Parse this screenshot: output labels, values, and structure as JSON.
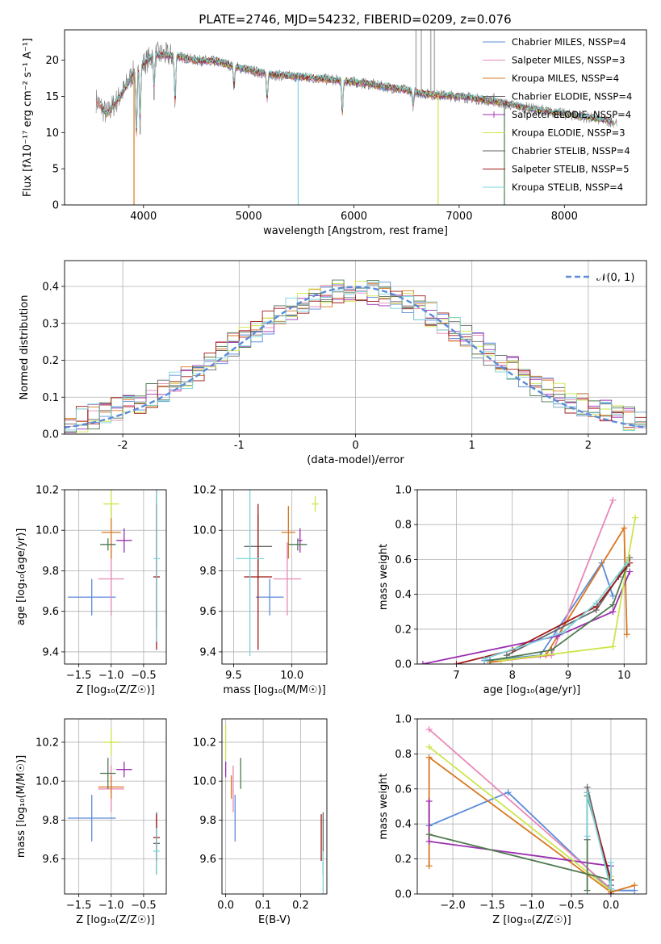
{
  "colors": {
    "chabrier_miles": "#5b8bd9",
    "salpeter_miles": "#e887b6",
    "kroupa_miles": "#d9771f",
    "chabrier_elodie": "#666666",
    "salpeter_elodie": "#9b2fb0",
    "kroupa_elodie": "#cbe64a",
    "chabrier_stelib": "#4f7a4f",
    "salpeter_stelib": "#a01818",
    "kroupa_stelib": "#7dd5dd",
    "normal_curve": "#5b8bd9",
    "grid": "#b0b0b0"
  },
  "chart_data": [
    {
      "id": "spectrum",
      "type": "line",
      "title": "PLATE=2746, MJD=54232, FIBERID=0209, z=0.076",
      "xlabel": "wavelength [Angstrom, rest frame]",
      "ylabel": "Flux [fλ10⁻¹⁷ erg cm⁻² s⁻¹ A⁻¹]",
      "xlim": [
        3250,
        8780
      ],
      "ylim": [
        0,
        24.2
      ],
      "xticks": [
        4000,
        5000,
        6000,
        7000,
        8000
      ],
      "yticks": [
        0,
        5,
        10,
        15,
        20
      ],
      "grid": false,
      "legend_position": "upper-right",
      "legend": [
        {
          "label": "Chabrier MILES, NSSP=4",
          "color_key": "chabrier_miles",
          "marker": false
        },
        {
          "label": "Salpeter MILES, NSSP=3",
          "color_key": "salpeter_miles",
          "marker": false
        },
        {
          "label": "Kroupa MILES, NSSP=4",
          "color_key": "kroupa_miles",
          "marker": false
        },
        {
          "label": "Chabrier ELODIE, NSSP=4",
          "color_key": "chabrier_elodie",
          "marker": true
        },
        {
          "label": "Salpeter ELODIE, NSSP=4",
          "color_key": "salpeter_elodie",
          "marker": true
        },
        {
          "label": "Kroupa ELODIE, NSSP=3",
          "color_key": "kroupa_elodie",
          "marker": false
        },
        {
          "label": "Chabrier STELIB, NSSP=4",
          "color_key": "chabrier_elodie",
          "marker": false
        },
        {
          "label": "Salpeter STELIB, NSSP=5",
          "color_key": "salpeter_stelib",
          "marker": false
        },
        {
          "label": "Kroupa STELIB, NSSP=4",
          "color_key": "kroupa_stelib",
          "marker": false
        }
      ],
      "continuum": {
        "x": [
          3550,
          3650,
          3800,
          3900,
          4000,
          4100,
          4300,
          4500,
          4700,
          4900,
          5100,
          5300,
          5500,
          5800,
          6100,
          6400,
          6700,
          7000,
          7300,
          7600,
          7900,
          8200,
          8500
        ],
        "y": [
          14.5,
          12.5,
          15.5,
          18.2,
          19.5,
          20.8,
          20.6,
          20.0,
          19.8,
          19.0,
          18.3,
          17.9,
          17.7,
          17.3,
          16.8,
          16.1,
          15.3,
          15.0,
          14.4,
          13.5,
          12.8,
          12.1,
          11.4
        ]
      },
      "absorption_lines": [
        {
          "x": 3933,
          "depth": 10
        },
        {
          "x": 3968,
          "depth": 8
        },
        {
          "x": 4101,
          "depth": 5
        },
        {
          "x": 4300,
          "depth": 7
        },
        {
          "x": 4861,
          "depth": 3
        },
        {
          "x": 5175,
          "depth": 4
        },
        {
          "x": 5890,
          "depth": 5
        },
        {
          "x": 6563,
          "depth": 2
        }
      ],
      "model_spikes_down": [
        {
          "x": 3910,
          "to": 0,
          "color_key": "kroupa_miles"
        },
        {
          "x": 5470,
          "to": 0,
          "color_key": "kroupa_stelib"
        },
        {
          "x": 6800,
          "to": 0,
          "color_key": "kroupa_elodie"
        },
        {
          "x": 7430,
          "to": 0,
          "color_key": "chabrier_stelib"
        }
      ],
      "sky_spikes_up": [
        {
          "x": 6590,
          "to": 24.2
        },
        {
          "x": 6640,
          "to": 24.2
        },
        {
          "x": 6730,
          "to": 24.2
        },
        {
          "x": 6765,
          "to": 24.2
        }
      ]
    },
    {
      "id": "residuals",
      "type": "histogram",
      "xlabel": "(data-model)/error",
      "ylabel": "Normed distribution",
      "xlim": [
        -2.5,
        2.5
      ],
      "ylim": [
        0,
        0.47
      ],
      "xticks": [
        -2,
        -1,
        0,
        1,
        2
      ],
      "yticks": [
        0.0,
        0.1,
        0.2,
        0.3,
        0.4
      ],
      "grid": true,
      "legend_position": "upper-right",
      "legend": [
        {
          "label": "𝒩(0, 1)",
          "color_key": "normal_curve",
          "style": "dashed"
        }
      ],
      "bin_width": 0.1,
      "bin_start": -2.5
    },
    {
      "id": "age_vs_Z",
      "type": "errorbar",
      "xlabel": "Z [log₁₀(Z/Z☉)]",
      "ylabel": "age  [log₁₀(age/yr)]",
      "xlim": [
        -1.72,
        -0.15
      ],
      "ylim": [
        9.34,
        10.2
      ],
      "xticks": [
        -1.5,
        -1.0,
        -0.5
      ],
      "yticks": [
        9.4,
        9.6,
        9.8,
        10.0,
        10.2
      ],
      "grid": true,
      "points": [
        {
          "model": "chabrier_miles",
          "x": -1.3,
          "xerr": 0.37,
          "y": 9.67,
          "yerr": 0.09
        },
        {
          "model": "salpeter_miles",
          "x": -1.0,
          "xerr": 0.2,
          "y": 9.76,
          "yerr": 0.18
        },
        {
          "model": "kroupa_miles",
          "x": -1.0,
          "xerr": 0.15,
          "y": 9.99,
          "yerr": 0.13
        },
        {
          "model": "chabrier_elodie",
          "x": -0.3,
          "xerr": 0.0,
          "y": 9.92,
          "yerr": 0.4
        },
        {
          "model": "salpeter_elodie",
          "x": -0.8,
          "xerr": 0.12,
          "y": 9.95,
          "yerr": 0.06
        },
        {
          "model": "kroupa_elodie",
          "x": -1.0,
          "xerr": 0.12,
          "y": 10.13,
          "yerr": 0.07
        },
        {
          "model": "chabrier_stelib",
          "x": -1.05,
          "xerr": 0.12,
          "y": 9.93,
          "yerr": 0.03
        },
        {
          "model": "salpeter_stelib",
          "x": -0.3,
          "xerr": 0.05,
          "y": 9.77,
          "yerr": 0.36
        },
        {
          "model": "kroupa_stelib",
          "x": -0.3,
          "xerr": 0.05,
          "y": 9.86,
          "yerr": 0.41
        }
      ]
    },
    {
      "id": "age_vs_mass",
      "type": "errorbar",
      "xlabel": "mass [log₁₀(M/M☉)]",
      "ylabel": "",
      "xlim": [
        9.4,
        10.3
      ],
      "ylim": [
        9.34,
        10.2
      ],
      "xticks": [
        9.5,
        10.0
      ],
      "yticks": [
        9.4,
        9.6,
        9.8,
        10.0,
        10.2
      ],
      "grid": true,
      "points": [
        {
          "model": "chabrier_miles",
          "x": 9.81,
          "xerr": 0.12,
          "y": 9.67,
          "yerr": 0.09
        },
        {
          "model": "salpeter_miles",
          "x": 9.96,
          "xerr": 0.12,
          "y": 9.76,
          "yerr": 0.18
        },
        {
          "model": "kroupa_miles",
          "x": 9.97,
          "xerr": 0.06,
          "y": 9.99,
          "yerr": 0.13
        },
        {
          "model": "chabrier_elodie",
          "x": 9.71,
          "xerr": 0.12,
          "y": 9.92,
          "yerr": 0.16
        },
        {
          "model": "salpeter_elodie",
          "x": 10.07,
          "xerr": 0.02,
          "y": 9.95,
          "yerr": 0.06
        },
        {
          "model": "kroupa_elodie",
          "x": 10.2,
          "xerr": 0.03,
          "y": 10.13,
          "yerr": 0.04
        },
        {
          "model": "chabrier_stelib",
          "x": 10.05,
          "xerr": 0.08,
          "y": 9.93,
          "yerr": 0.03
        },
        {
          "model": "salpeter_stelib",
          "x": 9.71,
          "xerr": 0.12,
          "y": 9.77,
          "yerr": 0.36
        },
        {
          "model": "kroupa_stelib",
          "x": 9.64,
          "xerr": 0.12,
          "y": 9.86,
          "yerr": 0.48
        }
      ]
    },
    {
      "id": "massweight_vs_age",
      "type": "line",
      "xlabel": "age  [log₁₀(age/yr)]",
      "ylabel": "mass weight",
      "xlim": [
        6.3,
        10.4
      ],
      "ylim": [
        0,
        1.0
      ],
      "xticks": [
        7,
        8,
        9,
        10
      ],
      "yticks": [
        0.0,
        0.2,
        0.4,
        0.6,
        0.8,
        1.0
      ],
      "grid": true,
      "series": [
        {
          "color_key": "chabrier_miles",
          "x": [
            7.5,
            8.5,
            9.6,
            9.8
          ],
          "y": [
            0.02,
            0.05,
            0.58,
            0.39
          ]
        },
        {
          "color_key": "salpeter_miles",
          "x": [
            7.8,
            8.7,
            9.8
          ],
          "y": [
            0.02,
            0.05,
            0.94
          ]
        },
        {
          "color_key": "kroupa_miles",
          "x": [
            7.6,
            8.6,
            10.0,
            10.05
          ],
          "y": [
            0.01,
            0.05,
            0.78,
            0.17
          ]
        },
        {
          "color_key": "chabrier_elodie",
          "x": [
            7.9,
            9.5,
            9.9,
            10.1
          ],
          "y": [
            0.05,
            0.31,
            0.5,
            0.61
          ]
        },
        {
          "color_key": "salpeter_elodie",
          "x": [
            6.4,
            8.8,
            9.8,
            10.1
          ],
          "y": [
            0.0,
            0.16,
            0.3,
            0.53
          ]
        },
        {
          "color_key": "kroupa_elodie",
          "x": [
            7.8,
            9.8,
            10.2
          ],
          "y": [
            0.02,
            0.1,
            0.84
          ]
        },
        {
          "color_key": "chabrier_stelib",
          "x": [
            7.6,
            8.7,
            9.8,
            10.05
          ],
          "y": [
            0.02,
            0.08,
            0.34,
            0.56
          ]
        },
        {
          "color_key": "salpeter_stelib",
          "x": [
            7.0,
            8.0,
            9.5,
            10.1
          ],
          "y": [
            0.0,
            0.08,
            0.33,
            0.58
          ]
        },
        {
          "color_key": "kroupa_stelib",
          "x": [
            7.5,
            8.9,
            9.5,
            10.05
          ],
          "y": [
            0.03,
            0.18,
            0.35,
            0.58
          ]
        }
      ]
    },
    {
      "id": "mass_vs_Z",
      "type": "errorbar",
      "xlabel": "Z [log₁₀(Z/Z☉)]",
      "ylabel": "mass [log₁₀(M/M☉)]",
      "xlim": [
        -1.72,
        -0.15
      ],
      "ylim": [
        9.42,
        10.32
      ],
      "xticks": [
        -1.5,
        -1.0,
        -0.5
      ],
      "yticks": [
        9.6,
        9.8,
        10.0,
        10.2
      ],
      "grid": true,
      "points": [
        {
          "model": "chabrier_miles",
          "x": -1.3,
          "xerr": 0.37,
          "y": 9.81,
          "yerr": 0.12
        },
        {
          "model": "salpeter_miles",
          "x": -1.0,
          "xerr": 0.2,
          "y": 9.96,
          "yerr": 0.12
        },
        {
          "model": "kroupa_miles",
          "x": -1.0,
          "xerr": 0.2,
          "y": 9.97,
          "yerr": 0.06
        },
        {
          "model": "chabrier_elodie",
          "x": -0.3,
          "xerr": 0.05,
          "y": 9.68,
          "yerr": 0.16
        },
        {
          "model": "salpeter_elodie",
          "x": -0.8,
          "xerr": 0.12,
          "y": 10.06,
          "yerr": 0.04
        },
        {
          "model": "kroupa_elodie",
          "x": -1.0,
          "xerr": 0.12,
          "y": 10.2,
          "yerr": 0.07
        },
        {
          "model": "chabrier_stelib",
          "x": -1.05,
          "xerr": 0.12,
          "y": 10.04,
          "yerr": 0.08
        },
        {
          "model": "salpeter_stelib",
          "x": -0.3,
          "xerr": 0.05,
          "y": 9.71,
          "yerr": 0.12
        },
        {
          "model": "kroupa_stelib",
          "x": -0.3,
          "xerr": 0.05,
          "y": 9.64,
          "yerr": 0.12
        }
      ]
    },
    {
      "id": "mass_vs_EBV",
      "type": "errorbar",
      "xlabel": "E(B-V)",
      "ylabel": "",
      "xlim": [
        -0.01,
        0.27
      ],
      "ylim": [
        9.42,
        10.32
      ],
      "xticks": [
        0.0,
        0.1,
        0.2
      ],
      "yticks": [
        9.6,
        9.8,
        10.0,
        10.2
      ],
      "grid": true,
      "points": [
        {
          "model": "chabrier_miles",
          "x": 0.025,
          "xerr": 0.0,
          "y": 9.81,
          "yerr": 0.12
        },
        {
          "model": "salpeter_miles",
          "x": 0.02,
          "xerr": 0.0,
          "y": 9.96,
          "yerr": 0.12
        },
        {
          "model": "kroupa_miles",
          "x": 0.015,
          "xerr": 0.0,
          "y": 9.97,
          "yerr": 0.06
        },
        {
          "model": "chabrier_elodie",
          "x": 0.26,
          "xerr": 0.0,
          "y": 9.68,
          "yerr": 0.16
        },
        {
          "model": "salpeter_elodie",
          "x": 0.0,
          "xerr": 0.0,
          "y": 10.06,
          "yerr": 0.04
        },
        {
          "model": "kroupa_elodie",
          "x": 0.0,
          "xerr": 0.0,
          "y": 10.2,
          "yerr": 0.09
        },
        {
          "model": "chabrier_stelib",
          "x": 0.04,
          "xerr": 0.0,
          "y": 10.04,
          "yerr": 0.08
        },
        {
          "model": "salpeter_stelib",
          "x": 0.255,
          "xerr": 0.0,
          "y": 9.71,
          "yerr": 0.12
        },
        {
          "model": "kroupa_stelib",
          "x": 0.26,
          "xerr": 0.0,
          "y": 9.52,
          "yerr": 0.12
        }
      ]
    },
    {
      "id": "massweight_vs_Z",
      "type": "line",
      "xlabel": "Z [log₁₀(Z/Z☉)]",
      "ylabel": "mass weight",
      "xlim": [
        -2.45,
        0.45
      ],
      "ylim": [
        0,
        1.0
      ],
      "xticks": [
        -2.0,
        -1.5,
        -1.0,
        -0.5,
        0.0
      ],
      "yticks": [
        0.0,
        0.2,
        0.4,
        0.6,
        0.8,
        1.0
      ],
      "grid": true,
      "series": [
        {
          "color_key": "chabrier_miles",
          "x": [
            -2.3,
            -1.3,
            0.0,
            0.3
          ],
          "y": [
            0.39,
            0.58,
            0.02,
            0.02
          ]
        },
        {
          "color_key": "salpeter_miles",
          "x": [
            -2.3,
            0.0
          ],
          "y": [
            0.94,
            0.03
          ]
        },
        {
          "color_key": "kroupa_miles",
          "x": [
            -2.3,
            -2.3,
            0.0,
            0.3
          ],
          "y": [
            0.16,
            0.78,
            0.01,
            0.05
          ]
        },
        {
          "color_key": "chabrier_elodie",
          "x": [
            -0.3,
            -0.3,
            0.0
          ],
          "y": [
            0.31,
            0.61,
            0.05
          ]
        },
        {
          "color_key": "salpeter_elodie",
          "x": [
            -2.3,
            -2.3,
            0.0,
            0.0
          ],
          "y": [
            0.53,
            0.3,
            0.16,
            0.0
          ]
        },
        {
          "color_key": "kroupa_elodie",
          "x": [
            -2.3,
            0.0,
            0.0
          ],
          "y": [
            0.84,
            0.02,
            0.1
          ]
        },
        {
          "color_key": "chabrier_stelib",
          "x": [
            -2.3,
            0.0,
            -0.3,
            -0.3
          ],
          "y": [
            0.34,
            0.08,
            0.56,
            0.02
          ]
        },
        {
          "color_key": "salpeter_stelib",
          "x": [
            -0.3,
            0.0,
            0.0
          ],
          "y": [
            0.58,
            0.08,
            0.0
          ]
        },
        {
          "color_key": "kroupa_stelib",
          "x": [
            -0.3,
            -0.3,
            0.0,
            0.0
          ],
          "y": [
            0.33,
            0.58,
            0.03,
            0.18
          ]
        }
      ]
    }
  ]
}
